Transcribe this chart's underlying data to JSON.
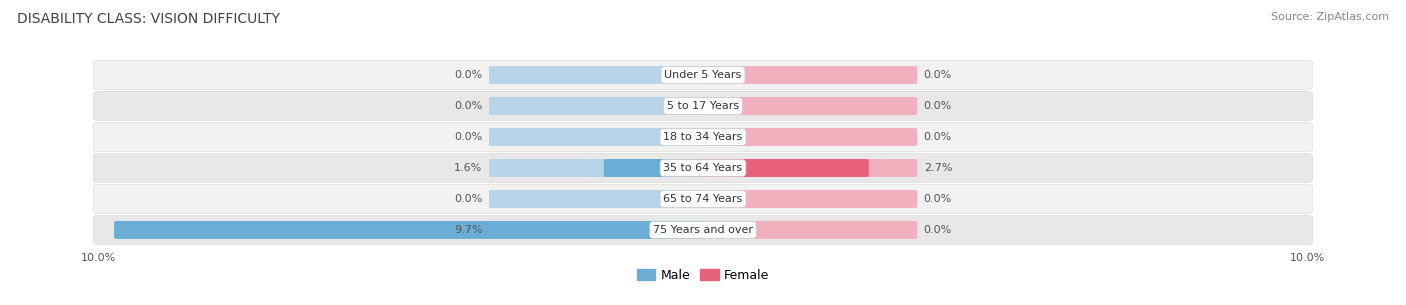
{
  "title": "DISABILITY CLASS: VISION DIFFICULTY",
  "source": "Source: ZipAtlas.com",
  "categories": [
    "Under 5 Years",
    "5 to 17 Years",
    "18 to 34 Years",
    "35 to 64 Years",
    "65 to 74 Years",
    "75 Years and over"
  ],
  "male_values": [
    0.0,
    0.0,
    0.0,
    1.6,
    0.0,
    9.7
  ],
  "female_values": [
    0.0,
    0.0,
    0.0,
    2.7,
    0.0,
    0.0
  ],
  "male_color": "#6aaed6",
  "female_color": "#e8607a",
  "male_color_light": "#b8d4e8",
  "female_color_light": "#f2b0be",
  "row_bg_color_even": "#f2f2f2",
  "row_bg_color_odd": "#e8e8e8",
  "xlim": 10.0,
  "light_bar_extent": 3.5,
  "title_fontsize": 10,
  "source_fontsize": 8,
  "label_fontsize": 8,
  "value_fontsize": 8,
  "tick_fontsize": 8
}
